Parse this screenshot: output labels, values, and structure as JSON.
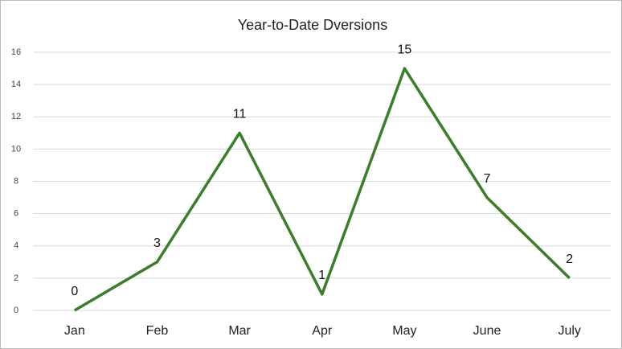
{
  "chart_data": {
    "type": "line",
    "title": "Year-to-Date Dversions",
    "categories": [
      "Jan",
      "Feb",
      "Mar",
      "Apr",
      "May",
      "June",
      "July"
    ],
    "values": [
      0,
      3,
      11,
      1,
      15,
      7,
      2
    ],
    "color": "#3b7d2a",
    "ylim": [
      0,
      16
    ],
    "yticks": [
      0,
      2,
      4,
      6,
      8,
      10,
      12,
      14,
      16
    ],
    "grid": true
  }
}
